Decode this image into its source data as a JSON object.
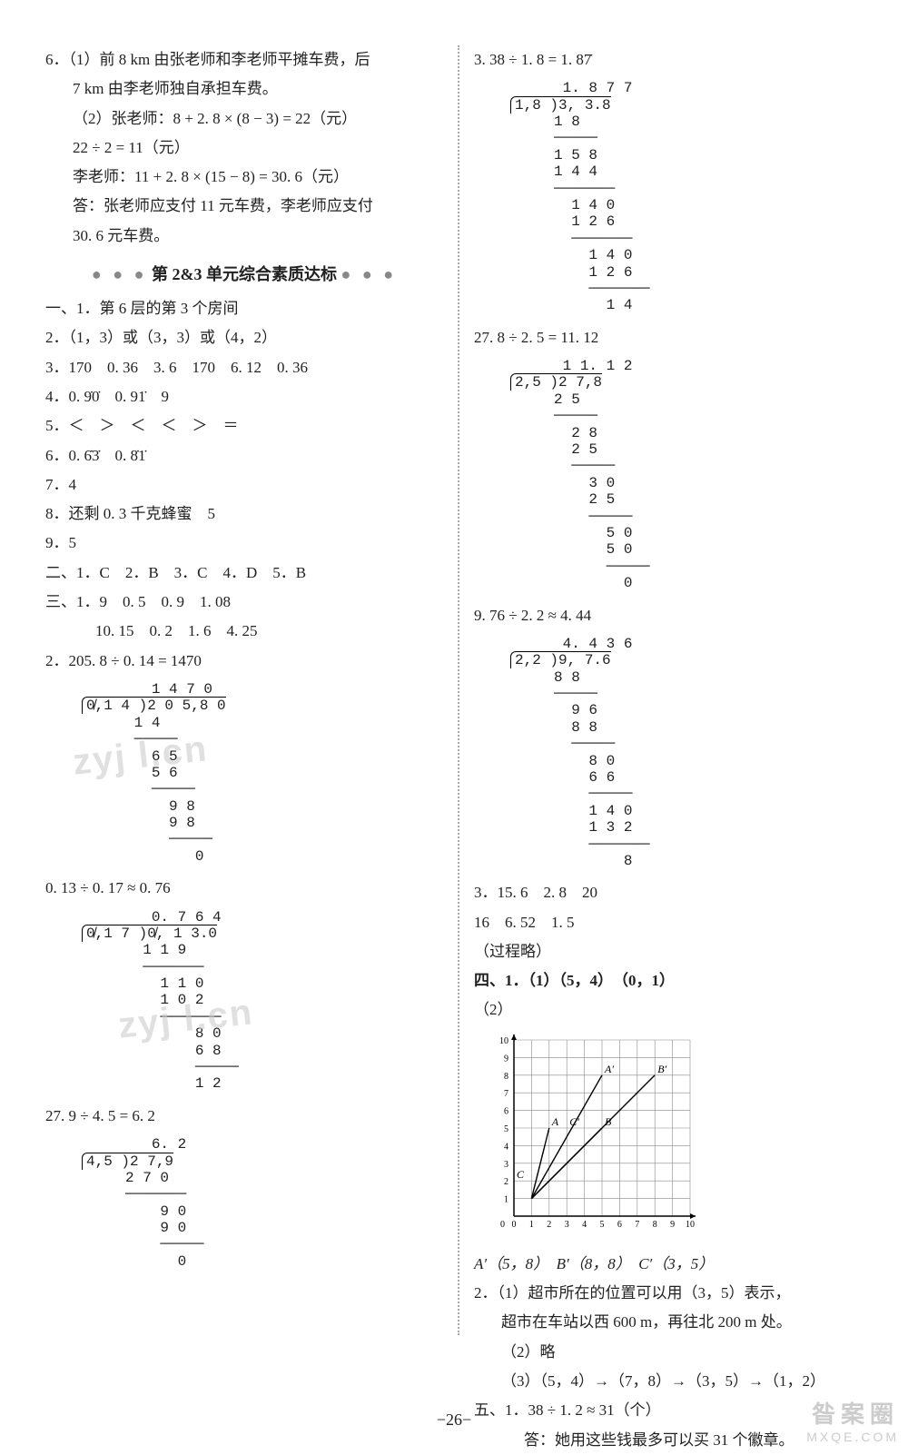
{
  "left": {
    "q6": {
      "l1": "6．（1）前 8 km 由张老师和李老师平摊车费，后",
      "l2": "7 km 由李老师独自承担车费。",
      "l3": "（2）张老师：8 + 2. 8 × (8 − 3) = 22（元）",
      "l4": "22 ÷ 2 = 11（元）",
      "l5": "李老师：11 + 2. 8 × (15 − 8) = 30. 6（元）",
      "l6": "答：张老师应支付 11 元车费，李老师应支付",
      "l7": "30. 6 元车费。"
    },
    "section_title": "第 2&3 单元综合素质达标",
    "ans": {
      "y1": "一、1．第 6 层的第 3 个房间",
      "y2": "2．（1，3）或（3，3）或（4，2）",
      "y3": "3．170　0. 36　3. 6　170　6. 12　0. 36",
      "y4": "4．0. 9̇0̇　0. 91̇　9",
      "y5": "5．＜　＞　＜　＜　＞　＝",
      "y6": "6．0. 6̇3̇　0. 8̇1̇",
      "y7": "7．4",
      "y8": "8．还剩 0. 3 千克蜂蜜　5",
      "y9": "9．5",
      "er": "二、1．C　2．B　3．C　4．D　5．B",
      "san1": "三、1．9　0. 5　0. 9　1. 08",
      "san2": "10. 15　0. 2　1. 6　4. 25",
      "q2": "2．205. 8 ÷ 0. 14 = 1470"
    },
    "ld1": {
      "quotient": "        1 4 7 0",
      "divline": "0̸,1 4 )2 0 5,8 0",
      "r1": "      1 4",
      "u1": "      ─────",
      "r2": "        6 5",
      "r3": "        5 6",
      "u2": "        ─────",
      "r4": "          9 8",
      "r5": "          9 8",
      "u3": "          ─────",
      "r6": "             0"
    },
    "eq2": "0. 13 ÷ 0. 17 ≈ 0. 76",
    "ld2": {
      "quotient": "        0. 7 6 4",
      "divline": "0̸,1 7 )0̸, 1 3.0",
      "r1": "       1 1 9",
      "u1": "       ───────",
      "r2": "         1 1 0",
      "r3": "         1 0 2",
      "u2": "         ───────",
      "r4": "             8 0",
      "r5": "             6 8",
      "u3": "             ─────",
      "r6": "             1 2"
    },
    "eq3": "27. 9 ÷ 4. 5 = 6. 2",
    "ld3": {
      "quotient": "        6. 2",
      "divline": "4,5 )2 7,9",
      "r1": "     2 7 0",
      "u1": "     ───────",
      "r2": "         9 0",
      "r3": "         9 0",
      "u2": "         ─────",
      "r4": "           0"
    }
  },
  "right": {
    "eq1": "3. 38 ÷ 1. 8 = 1. 87̇",
    "ld1": {
      "quotient": "      1. 8 7 7",
      "divline": "1,8 )3, 3.8",
      "r1": "     1 8",
      "u1": "     ─────",
      "r2": "     1 5 8",
      "r3": "     1 4 4",
      "u2": "     ───────",
      "r4": "       1 4 0",
      "r5": "       1 2 6",
      "u3": "       ───────",
      "r6": "         1 4 0",
      "r7": "         1 2 6",
      "u4": "         ───────",
      "r8": "           1 4"
    },
    "eq2": "27. 8 ÷ 2. 5 = 11. 12",
    "ld2": {
      "quotient": "      1 1. 1 2",
      "divline": "2,5 )2 7,8",
      "r1": "     2 5",
      "u1": "     ─────",
      "r2": "       2 8",
      "r3": "       2 5",
      "u2": "       ─────",
      "r4": "         3 0",
      "r5": "         2 5",
      "u3": "         ─────",
      "r6": "           5 0",
      "r7": "           5 0",
      "u4": "           ─────",
      "r8": "             0"
    },
    "eq3": "9. 76 ÷ 2. 2 ≈ 4. 44",
    "ld3": {
      "quotient": "      4. 4 3 6",
      "divline": "2,2 )9, 7.6",
      "r1": "     8 8",
      "u1": "     ─────",
      "r2": "       9 6",
      "r3": "       8 8",
      "u2": "       ─────",
      "r4": "         8 0",
      "r5": "         6 6",
      "u3": "         ─────",
      "r6": "         1 4 0",
      "r7": "         1 3 2",
      "u4": "         ───────",
      "r8": "             8"
    },
    "q3a": "3．15. 6　2. 8　20",
    "q3b": "16　6. 52　1. 5",
    "q3c": "（过程略）",
    "si1": "四、1．（1）（5，4）　（0，1）",
    "si2": "（2）",
    "chart": {
      "type": "grid",
      "size": 10,
      "points": {
        "Aprime": {
          "x": 5,
          "y": 8,
          "label": "A′"
        },
        "Bprime": {
          "x": 8,
          "y": 8,
          "label": "B′"
        },
        "Cprime": {
          "x": 3,
          "y": 5,
          "label": "C′"
        },
        "A": {
          "x": 2,
          "y": 5,
          "label": "A"
        },
        "B": {
          "x": 5,
          "y": 5,
          "label": "B"
        },
        "C": {
          "x": 0,
          "y": 2,
          "label": "C"
        },
        "O": {
          "x": 1,
          "y": 1
        }
      },
      "lines": [
        [
          "O",
          "A"
        ],
        [
          "O",
          "B"
        ],
        [
          "O",
          "Aprime"
        ],
        [
          "O",
          "Bprime"
        ]
      ],
      "grid_color": "#888",
      "line_color": "#000"
    },
    "coords": "A′（5，8）　B′（8，8）　C′（3，5）",
    "q2a": "2．（1）超市所在的位置可以用（3，5）表示，",
    "q2b": "超市在车站以西 600 m，再往北 200 m 处。",
    "q2c": "（2）略",
    "q2d": "（3）（5，4）→（7，8）→（3，5）→（1，2）",
    "wu1": "五、1．38 ÷ 1. 2 ≈ 31（个）",
    "wu2": "答：她用这些钱最多可以买 31 个徽章。"
  },
  "page_no": "−26−",
  "watermarks": {
    "w": "zyj l.cn"
  },
  "corner": {
    "a": "昝案圈",
    "b": "MXQE.COM"
  }
}
